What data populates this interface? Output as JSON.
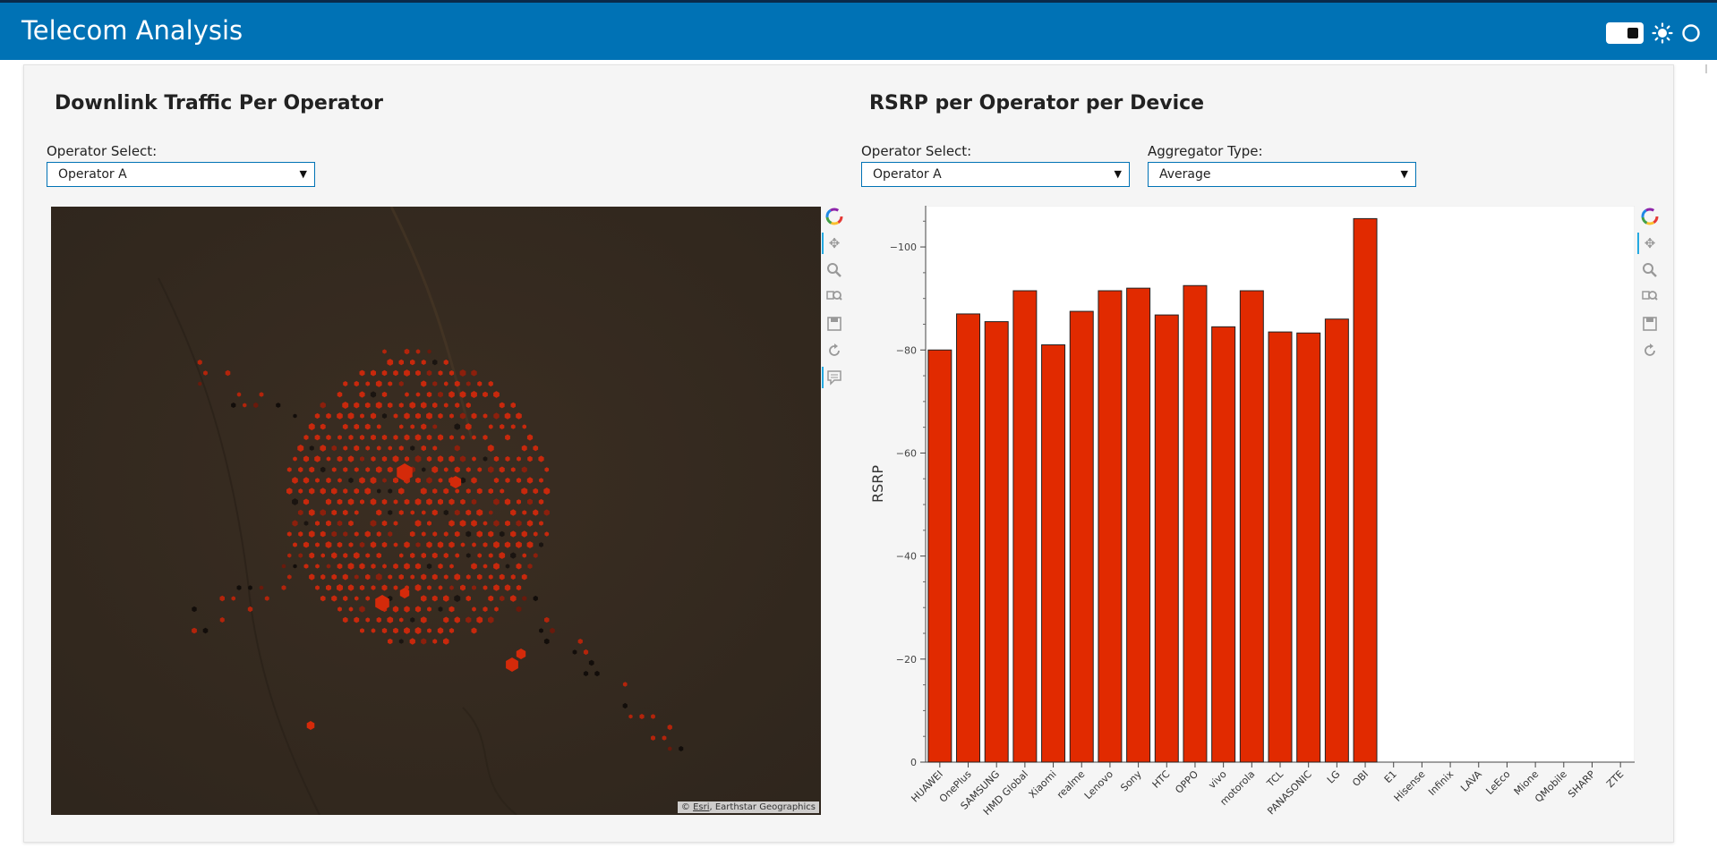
{
  "app": {
    "title": "Telecom Analysis"
  },
  "header_icons": {
    "toggle": "theme-toggle",
    "sun": "sun-icon",
    "circle": "circle-icon"
  },
  "left_panel": {
    "title": "Downlink Traffic Per Operator",
    "operator_label": "Operator Select:",
    "operator_value": "Operator A",
    "map_attribution_prefix": "©",
    "map_attribution_esri": "Esri",
    "map_attribution_rest": ", Earthstar Geographics",
    "toolbar": [
      "bokeh-logo-icon",
      "pan-icon",
      "wheel-zoom-icon",
      "box-zoom-icon",
      "save-icon",
      "reset-icon",
      "hover-icon"
    ]
  },
  "right_panel": {
    "title": "RSRP per Operator per Device",
    "operator_label": "Operator Select:",
    "operator_value": "Operator A",
    "aggregator_label": "Aggregator Type:",
    "aggregator_value": "Average",
    "toolbar": [
      "bokeh-logo-icon",
      "pan-icon",
      "wheel-zoom-icon",
      "box-zoom-icon",
      "save-icon",
      "reset-icon"
    ]
  },
  "colors": {
    "header": "#0072b5",
    "bar": "#e12a00",
    "hex_bright": "#d42a0a",
    "map_bg": "#352a1f"
  },
  "chart_data": {
    "type": "bar",
    "ylabel": "RSRP",
    "ylim": [
      0,
      -108
    ],
    "yticks": [
      0,
      -20,
      -40,
      -60,
      -80,
      -100
    ],
    "ytick_labels": [
      "0",
      "−20",
      "−40",
      "−60",
      "−80",
      "−100"
    ],
    "categories": [
      "HUAWEI",
      "OnePlus",
      "SAMSUNG",
      "HMD Global",
      "Xiaomi",
      "realme",
      "Lenovo",
      "Sony",
      "HTC",
      "OPPO",
      "vivo",
      "motorola",
      "TCL",
      "PANASONIC",
      "LG",
      "OBI",
      "E1",
      "Hisense",
      "Infinix",
      "LAVA",
      "LeEco",
      "Mione",
      "QMobile",
      "SHARP",
      "ZTE"
    ],
    "values": [
      -80,
      -87,
      -85.5,
      -91.5,
      -81,
      -87.5,
      -91.5,
      -92,
      -86.8,
      -92.5,
      -84.5,
      -91.5,
      -83.5,
      -83.3,
      -86,
      -105.5,
      null,
      null,
      null,
      null,
      null,
      null,
      null,
      null,
      null
    ]
  }
}
